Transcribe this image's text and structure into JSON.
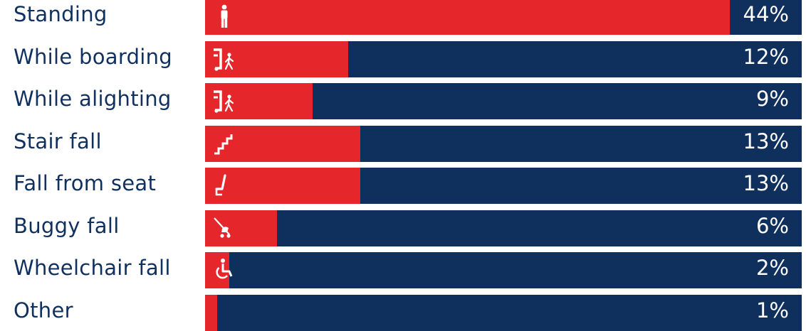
{
  "chart_data": {
    "type": "bar",
    "orientation": "horizontal",
    "value_unit": "%",
    "categories": [
      "Standing",
      "While boarding",
      "While alighting",
      "Stair fall",
      "Fall from seat",
      "Buggy fall",
      "Wheelchair fall",
      "Other"
    ],
    "values": [
      44,
      12,
      9,
      13,
      13,
      6,
      2,
      1
    ],
    "value_labels": [
      "44%",
      "12%",
      "9%",
      "13%",
      "13%",
      "6%",
      "2%",
      "1%"
    ],
    "icons": [
      "standing-person-icon",
      "boarding-icon",
      "alighting-icon",
      "stairs-icon",
      "seat-icon",
      "buggy-icon",
      "wheelchair-icon",
      ""
    ],
    "xlim": [
      0,
      50
    ],
    "grid": false,
    "legend": "none",
    "colors": {
      "fill": "#e5262b",
      "track": "#0f2f5c",
      "label": "#10305f",
      "value_text": "#ffffff"
    }
  }
}
